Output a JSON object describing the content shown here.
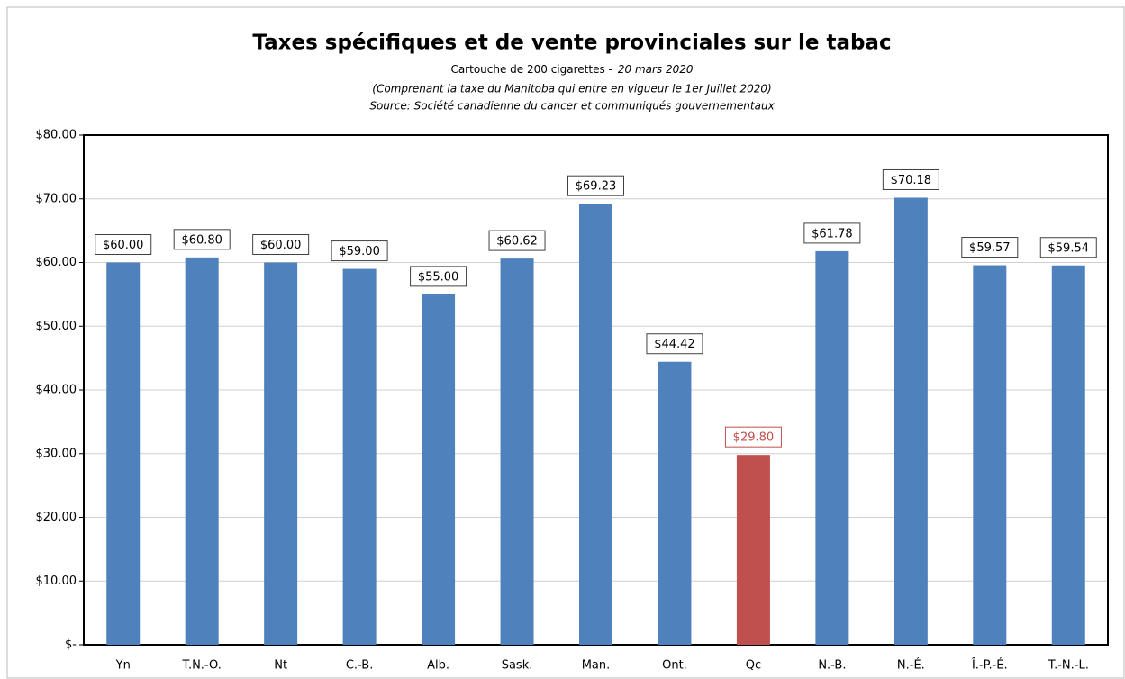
{
  "chart_data": {
    "type": "bar",
    "title": "Taxes spécifiques et de vente provinciales sur le tabac",
    "subtitle": "Cartouche de 200 cigarettes -",
    "subtitle_date": "20 mars 2020",
    "notes": [
      "(Comprenant la taxe du Manitoba qui entre en vigueur le 1er Juillet 2020)",
      "Source: Société canadienne du cancer et  communiqués gouvernementaux"
    ],
    "categories": [
      "Yn",
      "T.N.-O.",
      "Nt",
      "C.-B.",
      "Alb.",
      "Sask.",
      "Man.",
      "Ont.",
      "Qc",
      "N.-B.",
      "N.-É.",
      "Î.-P.-É.",
      "T.-N.-L."
    ],
    "values": [
      60.0,
      60.8,
      60.0,
      59.0,
      55.0,
      60.62,
      69.23,
      44.42,
      29.8,
      61.78,
      70.18,
      59.57,
      59.54
    ],
    "value_labels": [
      "$60.00",
      "$60.80",
      "$60.00",
      "$59.00",
      "$55.00",
      "$60.62",
      "$69.23",
      "$44.42",
      "$29.80",
      "$61.78",
      "$70.18",
      "$59.57",
      "$59.54"
    ],
    "color": "#4f81bd",
    "highlight": "Qc",
    "highlight_color": "#c0504d",
    "ylim": [
      0,
      80
    ],
    "yticks": [
      {
        "value": 0,
        "label": "$-"
      },
      {
        "value": 10,
        "label": "$10.00"
      },
      {
        "value": 20,
        "label": "$20.00"
      },
      {
        "value": 30,
        "label": "$30.00"
      },
      {
        "value": 40,
        "label": "$40.00"
      },
      {
        "value": 50,
        "label": "$50.00"
      },
      {
        "value": 60,
        "label": "$60.00"
      },
      {
        "value": 70,
        "label": "$70.00"
      },
      {
        "value": 80,
        "label": "$80.00"
      }
    ],
    "grid": true
  }
}
